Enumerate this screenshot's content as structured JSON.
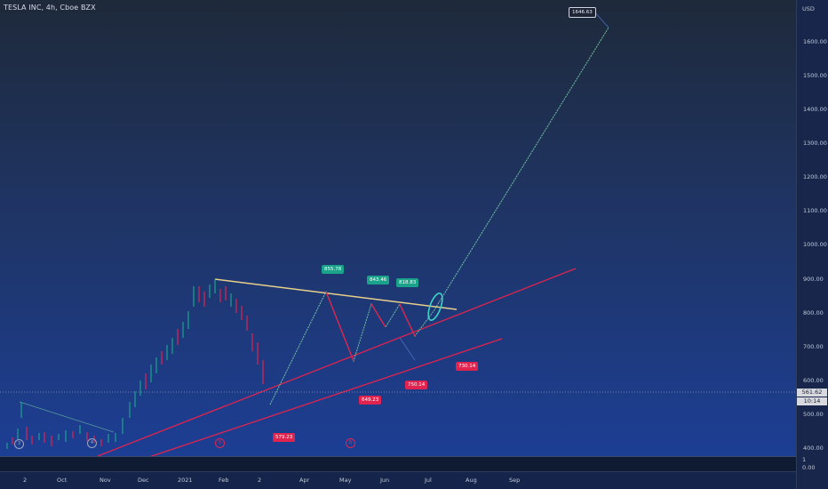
{
  "header": {
    "title": "TESLA INC, 4h, Cboe BZX"
  },
  "price_axis": {
    "currency": "USD",
    "ticks": [
      "1600.00",
      "1500.00",
      "1400.00",
      "1300.00",
      "1200.00",
      "1100.00",
      "1000.00",
      "900.00",
      "800.00",
      "700.00",
      "600.00",
      "500.00",
      "400.00"
    ],
    "current_price": "561.62",
    "countdown": "10:14"
  },
  "indicator_axis": {
    "top": "1",
    "bottom": "0.00"
  },
  "time_axis": {
    "ticks": [
      "2",
      "Oct",
      "Nov",
      "Dec",
      "2021",
      "Feb",
      "2",
      "Apr",
      "May",
      "Jun",
      "Jul",
      "Aug",
      "Sep"
    ]
  },
  "callouts": {
    "target": "1646.63",
    "g1": "855.78",
    "g2": "843.46",
    "g3": "818.83",
    "r1": "579.23",
    "r2": "649.23",
    "r3": "750.14",
    "r4": "730.14"
  },
  "wave_marks": [
    "3",
    "4",
    "5",
    "B"
  ],
  "colors": {
    "green": "#1aa38a",
    "red": "#e0244f",
    "yellow": "#e8d08a",
    "trend": "#e0244f",
    "projection": "#6fc3a4"
  }
}
